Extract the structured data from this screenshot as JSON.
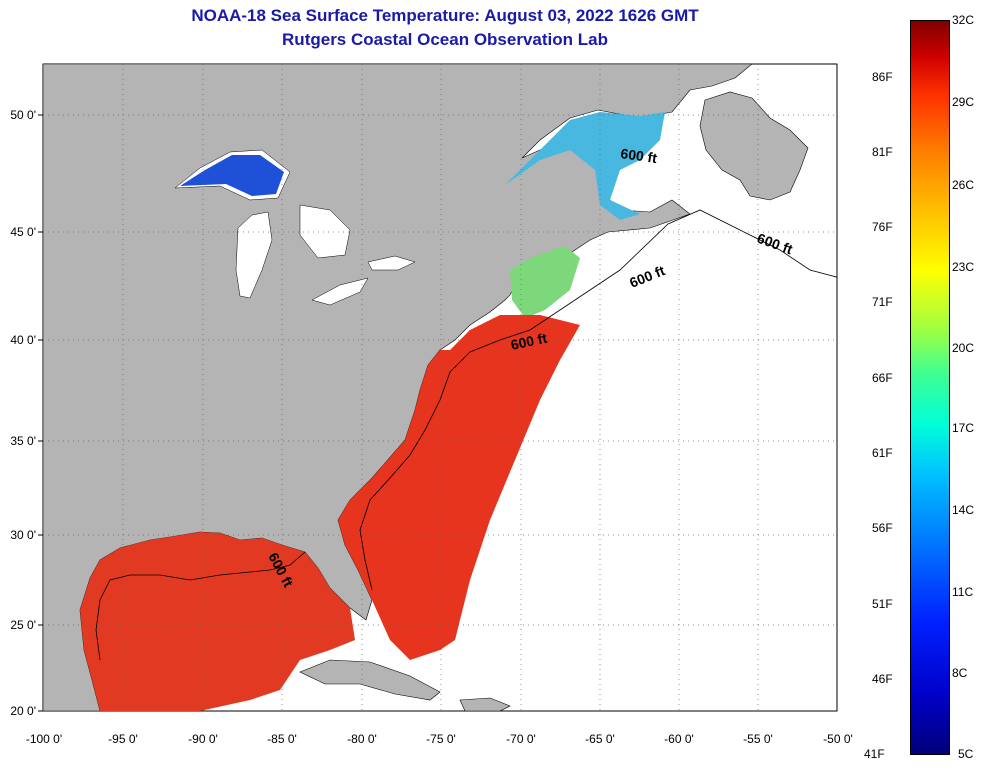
{
  "title": {
    "line1": "NOAA-18 Sea Surface Temperature:  August 03, 2022 1626 GMT",
    "line2": "Rutgers Coastal Ocean Observation Lab"
  },
  "axes": {
    "lat_labels": [
      "50 0'",
      "45 0'",
      "40 0'",
      "35 0'",
      "30 0'",
      "25 0'",
      "20 0'"
    ],
    "lon_labels": [
      "-100 0'",
      "-95 0'",
      "-90 0'",
      "-85 0'",
      "-80 0'",
      "-75 0'",
      "-70 0'",
      "-65 0'",
      "-60 0'",
      "-55 0'",
      "-50 0'"
    ]
  },
  "contour_labels": [
    "600 ft",
    "600 ft",
    "600 ft",
    "600 ft",
    "600 ft"
  ],
  "colorbar": {
    "fahrenheit_labels": [
      "86F",
      "81F",
      "76F",
      "71F",
      "66F",
      "61F",
      "56F",
      "51F",
      "46F",
      "41F"
    ],
    "celsius_labels": [
      "32C",
      "29C",
      "26C",
      "23C",
      "20C",
      "17C",
      "14C",
      "11C",
      "8C",
      "5C"
    ]
  },
  "colors": {
    "land": "#b4b4b4",
    "no_data": "#ffffff",
    "warm": "#e8321e",
    "cool": "#36b4e0",
    "cold": "#1438c8",
    "title": "#1a1aa8"
  }
}
